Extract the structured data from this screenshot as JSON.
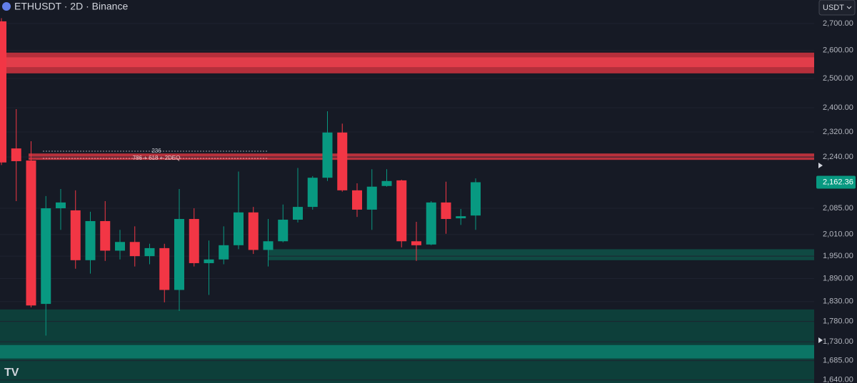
{
  "chart_data": {
    "type": "candlestick",
    "title": "ETHUSDT · 2D · Binance",
    "currency_button": "USDT",
    "log_scale": true,
    "grid": true,
    "up_color": "#089981",
    "down_color": "#f23645",
    "ylim": [
      1633,
      2790
    ],
    "yticks": [
      {
        "value": 2700,
        "label": "2,700.00"
      },
      {
        "value": 2600,
        "label": "2,600.00"
      },
      {
        "value": 2500,
        "label": "2,500.00"
      },
      {
        "value": 2400,
        "label": "2,400.00"
      },
      {
        "value": 2320,
        "label": "2,320.00"
      },
      {
        "value": 2240,
        "label": "2,240.00"
      },
      {
        "value": 2085,
        "label": "2,085.00"
      },
      {
        "value": 2010,
        "label": "2,010.00"
      },
      {
        "value": 1950,
        "label": "1,950.00"
      },
      {
        "value": 1890,
        "label": "1,890.00"
      },
      {
        "value": 1830,
        "label": "1,830.00"
      },
      {
        "value": 1780,
        "label": "1,780.00"
      },
      {
        "value": 1730,
        "label": "1,730.00"
      },
      {
        "value": 1685,
        "label": "1,685.00"
      },
      {
        "value": 1640,
        "label": "1,640.00"
      }
    ],
    "last_price_label": "2,162.36",
    "ohlc": {
      "open": [
        2708,
        2267,
        2229,
        1824,
        2085,
        2079,
        1939,
        2048,
        1965,
        1989,
        1950,
        1972,
        1860,
        2054,
        1931,
        1941,
        1980,
        2073,
        1967,
        1991,
        2052,
        2089,
        2176,
        2318,
        2138,
        2081,
        2151,
        2168,
        1991,
        1982,
        2102,
        2056,
        2064
      ],
      "high": [
        2720,
        2395,
        2290,
        2121,
        2142,
        2138,
        2075,
        2106,
        2023,
        2033,
        1984,
        1984,
        2142,
        2085,
        1993,
        2033,
        2195,
        2089,
        2054,
        2096,
        2206,
        2181,
        2388,
        2347,
        2159,
        2202,
        2202,
        2170,
        2046,
        2106,
        2164,
        2083,
        2174
      ],
      "low": [
        2215,
        2106,
        1815,
        1745,
        2023,
        1916,
        1903,
        1937,
        1941,
        1922,
        1928,
        1828,
        1806,
        1922,
        1847,
        1928,
        1969,
        1956,
        1922,
        1988,
        2044,
        2081,
        2166,
        2134,
        2060,
        2023,
        2149,
        1974,
        1937,
        1980,
        2012,
        2037,
        2023
      ],
      "close": [
        2223,
        2227,
        1820,
        2085,
        2102,
        1939,
        2048,
        1965,
        1989,
        1950,
        1972,
        1860,
        2054,
        1931,
        1941,
        1980,
        2073,
        1967,
        1991,
        2052,
        2089,
        2176,
        2318,
        2138,
        2081,
        2149,
        2166,
        1991,
        1980,
        2102,
        2054,
        2062,
        2162.36
      ]
    },
    "zones": [
      {
        "low": 2518,
        "high": 2592,
        "color": "#b52f3b"
      },
      {
        "low": 2540,
        "high": 2575,
        "color": "#e23d4a"
      },
      {
        "low": 2231,
        "high": 2251,
        "color": "#b8313c"
      },
      {
        "low": 1939,
        "high": 1969,
        "color": "#0f4a43"
      },
      {
        "low": 1633,
        "high": 1810,
        "color": "#0d3f3a"
      },
      {
        "low": 1690,
        "high": 1722,
        "color": "#0b7565"
      }
    ],
    "annotations": [
      "236",
      "786 + 618 + 2DEQ"
    ]
  }
}
